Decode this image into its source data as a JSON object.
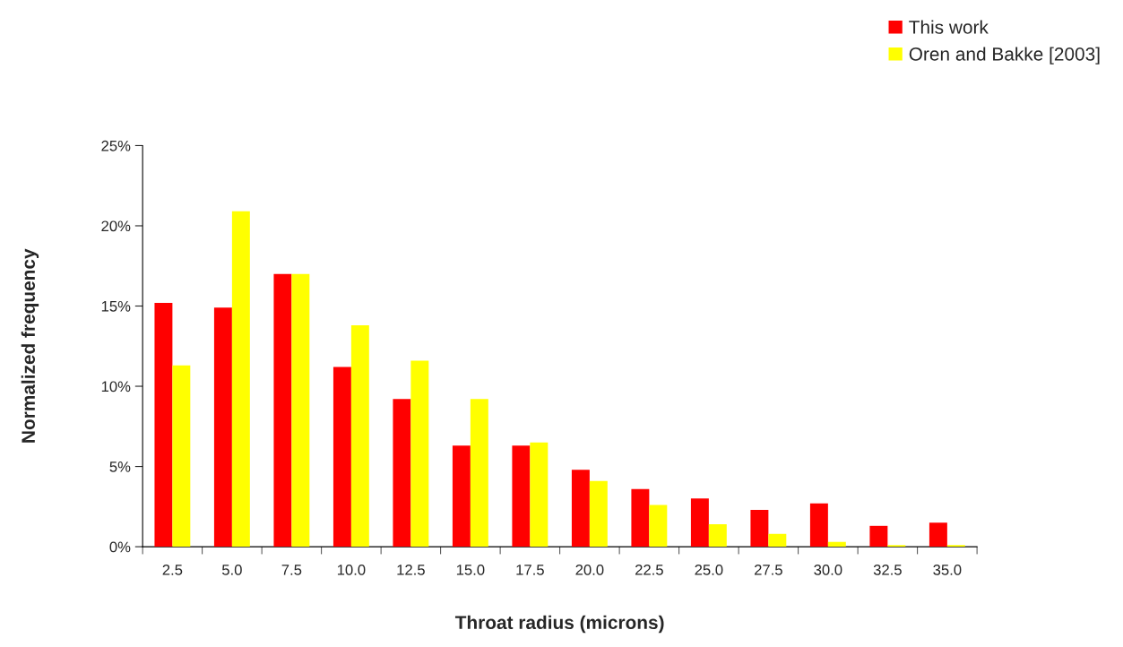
{
  "chart_data": {
    "type": "bar",
    "xlabel": "Throat radius (microns)",
    "ylabel": "Normalized frequency",
    "categories": [
      "2.5",
      "5.0",
      "7.5",
      "10.0",
      "12.5",
      "15.0",
      "17.5",
      "20.0",
      "22.5",
      "25.0",
      "27.5",
      "30.0",
      "32.5",
      "35.0"
    ],
    "series": [
      {
        "name": "This work",
        "color": "#ff0000",
        "values": [
          15.2,
          14.9,
          17.0,
          11.2,
          9.2,
          6.3,
          6.3,
          4.8,
          3.6,
          3.0,
          2.3,
          2.7,
          1.3,
          1.5
        ]
      },
      {
        "name": "Oren and Bakke [2003]",
        "color": "#ffff00",
        "values": [
          11.3,
          20.9,
          17.0,
          13.8,
          11.6,
          9.2,
          6.5,
          4.1,
          2.6,
          1.4,
          0.8,
          0.3,
          0.1,
          0.1
        ]
      }
    ],
    "ylim": [
      0,
      25
    ],
    "yticks": [
      {
        "value": 0,
        "label": "0%"
      },
      {
        "value": 5,
        "label": "5%"
      },
      {
        "value": 10,
        "label": "10%"
      },
      {
        "value": 15,
        "label": "15%"
      },
      {
        "value": 20,
        "label": "20%"
      },
      {
        "value": 25,
        "label": "25%"
      }
    ],
    "grid": false,
    "legend": "top right"
  }
}
